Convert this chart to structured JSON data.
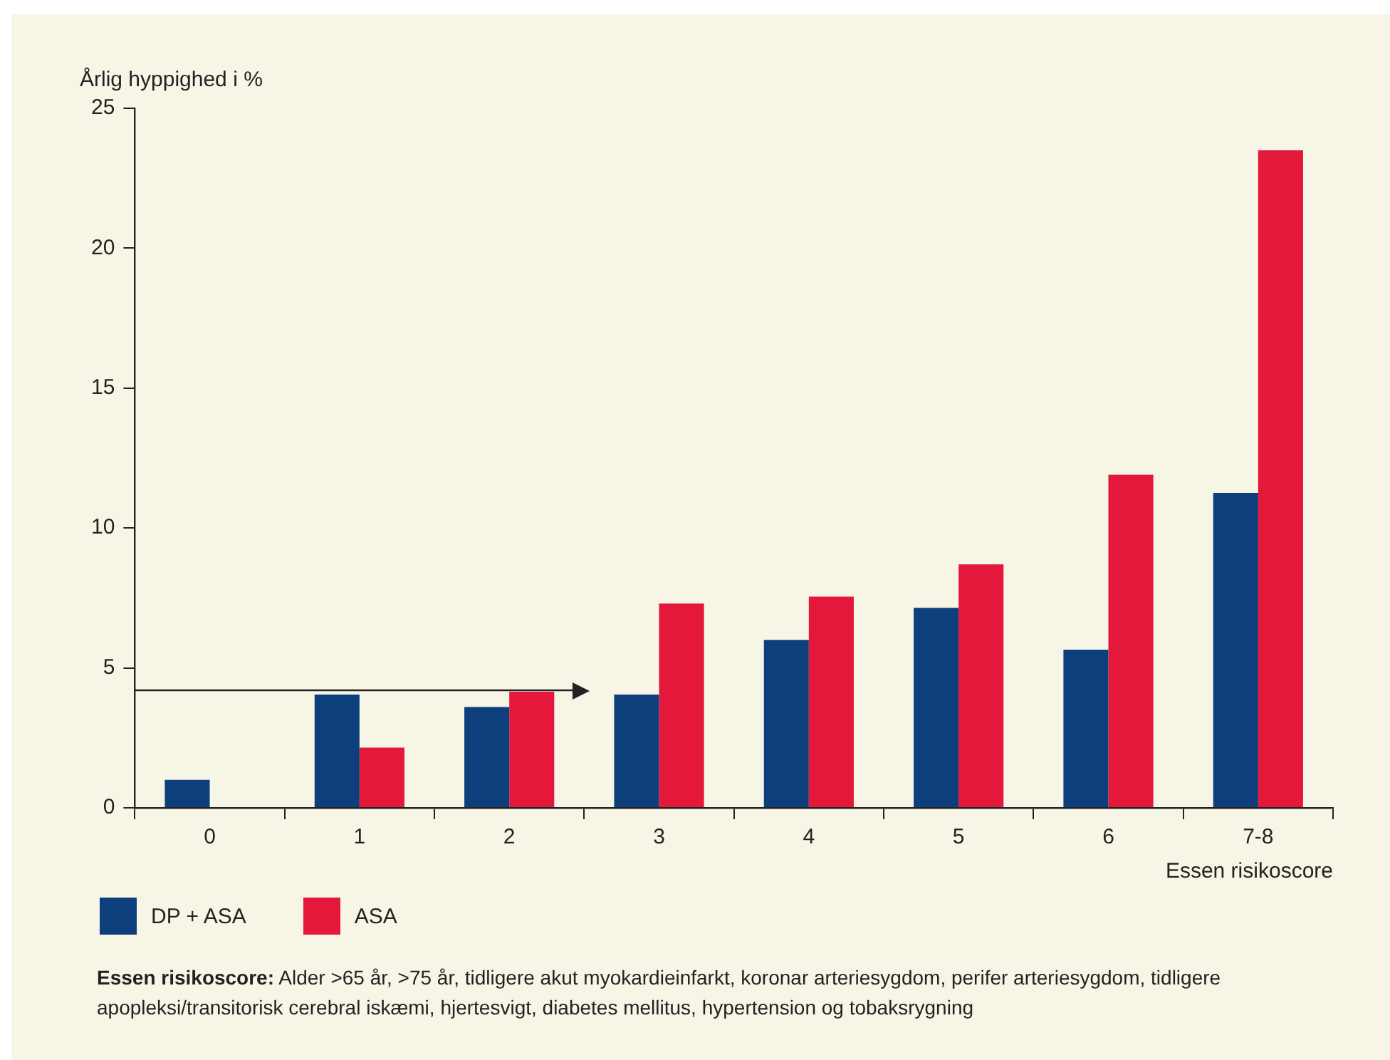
{
  "chart_data": {
    "type": "bar",
    "ylabel": "Årlig hyppighed i %",
    "xlabel": "Essen risikoscore",
    "categories": [
      "0",
      "1",
      "2",
      "3",
      "4",
      "5",
      "6",
      "7-8"
    ],
    "series": [
      {
        "name": "DP + ASA",
        "color": "#0d3f7c",
        "values": [
          1.0,
          4.05,
          3.6,
          4.05,
          6.0,
          7.15,
          5.65,
          11.25
        ]
      },
      {
        "name": "ASA",
        "color": "#e3183b",
        "values": [
          null,
          2.15,
          4.15,
          7.3,
          7.55,
          8.7,
          11.9,
          23.5
        ]
      }
    ],
    "ylim": [
      0,
      25
    ],
    "yticks": [
      0,
      5,
      10,
      15,
      20,
      25
    ],
    "grid": false,
    "legend": "bottom left",
    "ref_lines": [
      {
        "axis": "y",
        "value": 4.2,
        "color": "#222222"
      }
    ],
    "annotations": [
      "Essen risikoscore: Alder >65 år, >75 år, tidligere akut myokardieinfarkt, koronar arteriesygdom, perifer arteriesygdom, tidligere apopleksi/transitorisk cerebral iskæmi, hjertesvigt, diabetes mellitus, hypertension og tobaksrygning"
    ]
  }
}
